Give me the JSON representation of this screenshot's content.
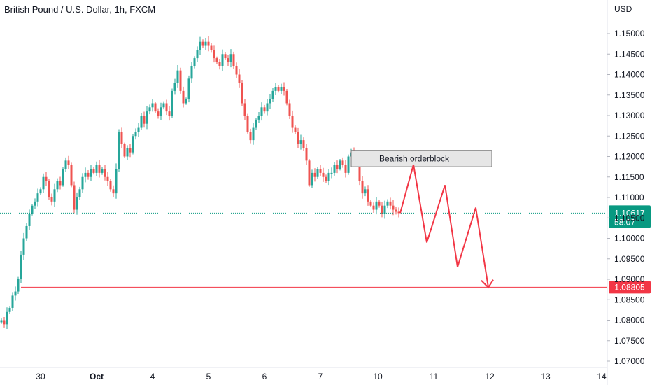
{
  "header": {
    "title": "British Pound / U.S. Dollar, 1h, FXCM"
  },
  "axis": {
    "unit_label": "USD"
  },
  "colors": {
    "up": "#26a69a",
    "down": "#ef5350",
    "zone_fill": "#e6e6e6",
    "zone_border": "#7a7a7a",
    "target": "#f23645",
    "price_line": "#089981"
  },
  "chart_data": {
    "type": "candlestick",
    "title": "British Pound / U.S. Dollar, 1h, FXCM",
    "ylabel": "USD",
    "ylim": [
      1.0695,
      1.1545
    ],
    "y_ticks": [
      "1.15000",
      "1.14500",
      "1.14000",
      "1.13500",
      "1.13000",
      "1.12500",
      "1.12000",
      "1.11500",
      "1.11000",
      "1.10500",
      "1.10000",
      "1.09500",
      "1.09000",
      "1.08500",
      "1.08000",
      "1.07500",
      "1.07000"
    ],
    "x_ticks": [
      "30",
      "Oct",
      "4",
      "5",
      "6",
      "7",
      "10",
      "11",
      "12",
      "13",
      "14"
    ],
    "close_path": [
      [
        0,
        1.08
      ],
      [
        4,
        1.079
      ],
      [
        8,
        1.082
      ],
      [
        12,
        1.083
      ],
      [
        16,
        1.086
      ],
      [
        20,
        1.087
      ],
      [
        24,
        1.09
      ],
      [
        28,
        1.096
      ],
      [
        32,
        1.1
      ],
      [
        36,
        1.103
      ],
      [
        40,
        1.106
      ],
      [
        44,
        1.108
      ],
      [
        48,
        1.109
      ],
      [
        52,
        1.111
      ],
      [
        56,
        1.112
      ],
      [
        60,
        1.115
      ],
      [
        64,
        1.114
      ],
      [
        68,
        1.11
      ],
      [
        72,
        1.109
      ],
      [
        76,
        1.112
      ],
      [
        80,
        1.114
      ],
      [
        84,
        1.113
      ],
      [
        88,
        1.117
      ],
      [
        92,
        1.119
      ],
      [
        96,
        1.118
      ],
      [
        100,
        1.113
      ],
      [
        104,
        1.107
      ],
      [
        108,
        1.11
      ],
      [
        112,
        1.112
      ],
      [
        116,
        1.115
      ],
      [
        120,
        1.116
      ],
      [
        124,
        1.115
      ],
      [
        128,
        1.117
      ],
      [
        132,
        1.116
      ],
      [
        136,
        1.118
      ],
      [
        140,
        1.116
      ],
      [
        144,
        1.117
      ],
      [
        148,
        1.115
      ],
      [
        152,
        1.114
      ],
      [
        156,
        1.112
      ],
      [
        160,
        1.111
      ],
      [
        164,
        1.117
      ],
      [
        168,
        1.126
      ],
      [
        172,
        1.123
      ],
      [
        176,
        1.12
      ],
      [
        180,
        1.122
      ],
      [
        184,
        1.121
      ],
      [
        188,
        1.125
      ],
      [
        192,
        1.126
      ],
      [
        196,
        1.127
      ],
      [
        200,
        1.13
      ],
      [
        204,
        1.128
      ],
      [
        208,
        1.131
      ],
      [
        212,
        1.132
      ],
      [
        216,
        1.133
      ],
      [
        220,
        1.131
      ],
      [
        224,
        1.13
      ],
      [
        228,
        1.132
      ],
      [
        232,
        1.133
      ],
      [
        236,
        1.131
      ],
      [
        240,
        1.13
      ],
      [
        244,
        1.136
      ],
      [
        248,
        1.138
      ],
      [
        252,
        1.141
      ],
      [
        256,
        1.136
      ],
      [
        260,
        1.133
      ],
      [
        264,
        1.134
      ],
      [
        268,
        1.139
      ],
      [
        272,
        1.142
      ],
      [
        276,
        1.144
      ],
      [
        280,
        1.146
      ],
      [
        284,
        1.148
      ],
      [
        288,
        1.147
      ],
      [
        292,
        1.148
      ],
      [
        296,
        1.147
      ],
      [
        300,
        1.146
      ],
      [
        304,
        1.144
      ],
      [
        308,
        1.143
      ],
      [
        312,
        1.142
      ],
      [
        316,
        1.145
      ],
      [
        320,
        1.144
      ],
      [
        324,
        1.143
      ],
      [
        328,
        1.145
      ],
      [
        332,
        1.142
      ],
      [
        336,
        1.14
      ],
      [
        340,
        1.138
      ],
      [
        344,
        1.133
      ],
      [
        348,
        1.13
      ],
      [
        352,
        1.126
      ],
      [
        356,
        1.124
      ],
      [
        360,
        1.127
      ],
      [
        364,
        1.129
      ],
      [
        368,
        1.13
      ],
      [
        372,
        1.132
      ],
      [
        376,
        1.131
      ],
      [
        380,
        1.133
      ],
      [
        384,
        1.134
      ],
      [
        388,
        1.136
      ],
      [
        392,
        1.137
      ],
      [
        396,
        1.136
      ],
      [
        400,
        1.137
      ],
      [
        404,
        1.136
      ],
      [
        408,
        1.133
      ],
      [
        412,
        1.13
      ],
      [
        416,
        1.127
      ],
      [
        420,
        1.126
      ],
      [
        424,
        1.123
      ],
      [
        428,
        1.124
      ],
      [
        432,
        1.122
      ],
      [
        436,
        1.119
      ],
      [
        440,
        1.113
      ],
      [
        444,
        1.116
      ],
      [
        448,
        1.115
      ],
      [
        452,
        1.117
      ],
      [
        456,
        1.116
      ],
      [
        460,
        1.115
      ],
      [
        464,
        1.114
      ],
      [
        468,
        1.116
      ],
      [
        472,
        1.116
      ],
      [
        476,
        1.118
      ],
      [
        480,
        1.117
      ],
      [
        484,
        1.119
      ],
      [
        488,
        1.118
      ],
      [
        492,
        1.116
      ],
      [
        496,
        1.12
      ],
      [
        500,
        1.121
      ],
      [
        504,
        1.12
      ],
      [
        508,
        1.119
      ],
      [
        512,
        1.114
      ],
      [
        516,
        1.111
      ],
      [
        520,
        1.112
      ],
      [
        524,
        1.109
      ],
      [
        528,
        1.108
      ],
      [
        532,
        1.107
      ],
      [
        536,
        1.109
      ],
      [
        540,
        1.108
      ],
      [
        544,
        1.106
      ],
      [
        548,
        1.108
      ],
      [
        552,
        1.109
      ],
      [
        556,
        1.108
      ],
      [
        560,
        1.107
      ],
      [
        564,
        1.1065
      ],
      [
        568,
        1.10617
      ]
    ],
    "annotations": {
      "zone_label": "Bearish orderblock",
      "zone_range": [
        1.1175,
        1.1215
      ],
      "projection_path": [
        [
          1.10617
        ],
        [
          1.118
        ],
        [
          1.099
        ],
        [
          1.113
        ],
        [
          1.093
        ],
        [
          1.1075
        ],
        [
          1.088
        ]
      ],
      "target_price": "1.08805",
      "current_price": "1.10617",
      "countdown": "58:07"
    }
  }
}
